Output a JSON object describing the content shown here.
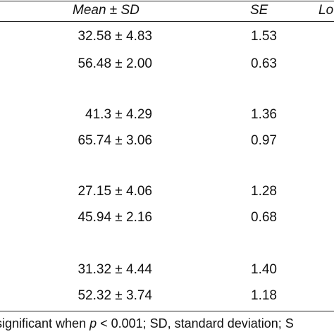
{
  "table": {
    "headers": {
      "mean_sd": "Mean ± SD",
      "se": "SE",
      "partial": "Lo"
    },
    "rows": [
      {
        "mean_sd": "32.58 ± 4.83",
        "se": "1.53"
      },
      {
        "mean_sd": "56.48 ± 2.00",
        "se": "0.63"
      },
      {
        "mean_sd": "41.3 ± 4.29",
        "se": "1.36"
      },
      {
        "mean_sd": "65.74 ± 3.06",
        "se": "0.97"
      },
      {
        "mean_sd": "27.15 ± 4.06",
        "se": "1.28"
      },
      {
        "mean_sd": "45.94 ± 2.16",
        "se": "0.68"
      },
      {
        "mean_sd": "31.32 ± 4.44",
        "se": "1.40"
      },
      {
        "mean_sd": "52.32 ± 3.74",
        "se": "1.18"
      }
    ]
  },
  "footnote": {
    "part1": "significant when ",
    "p_symbol": "p",
    "part2": " < 0.001; SD, standard deviation; S"
  }
}
